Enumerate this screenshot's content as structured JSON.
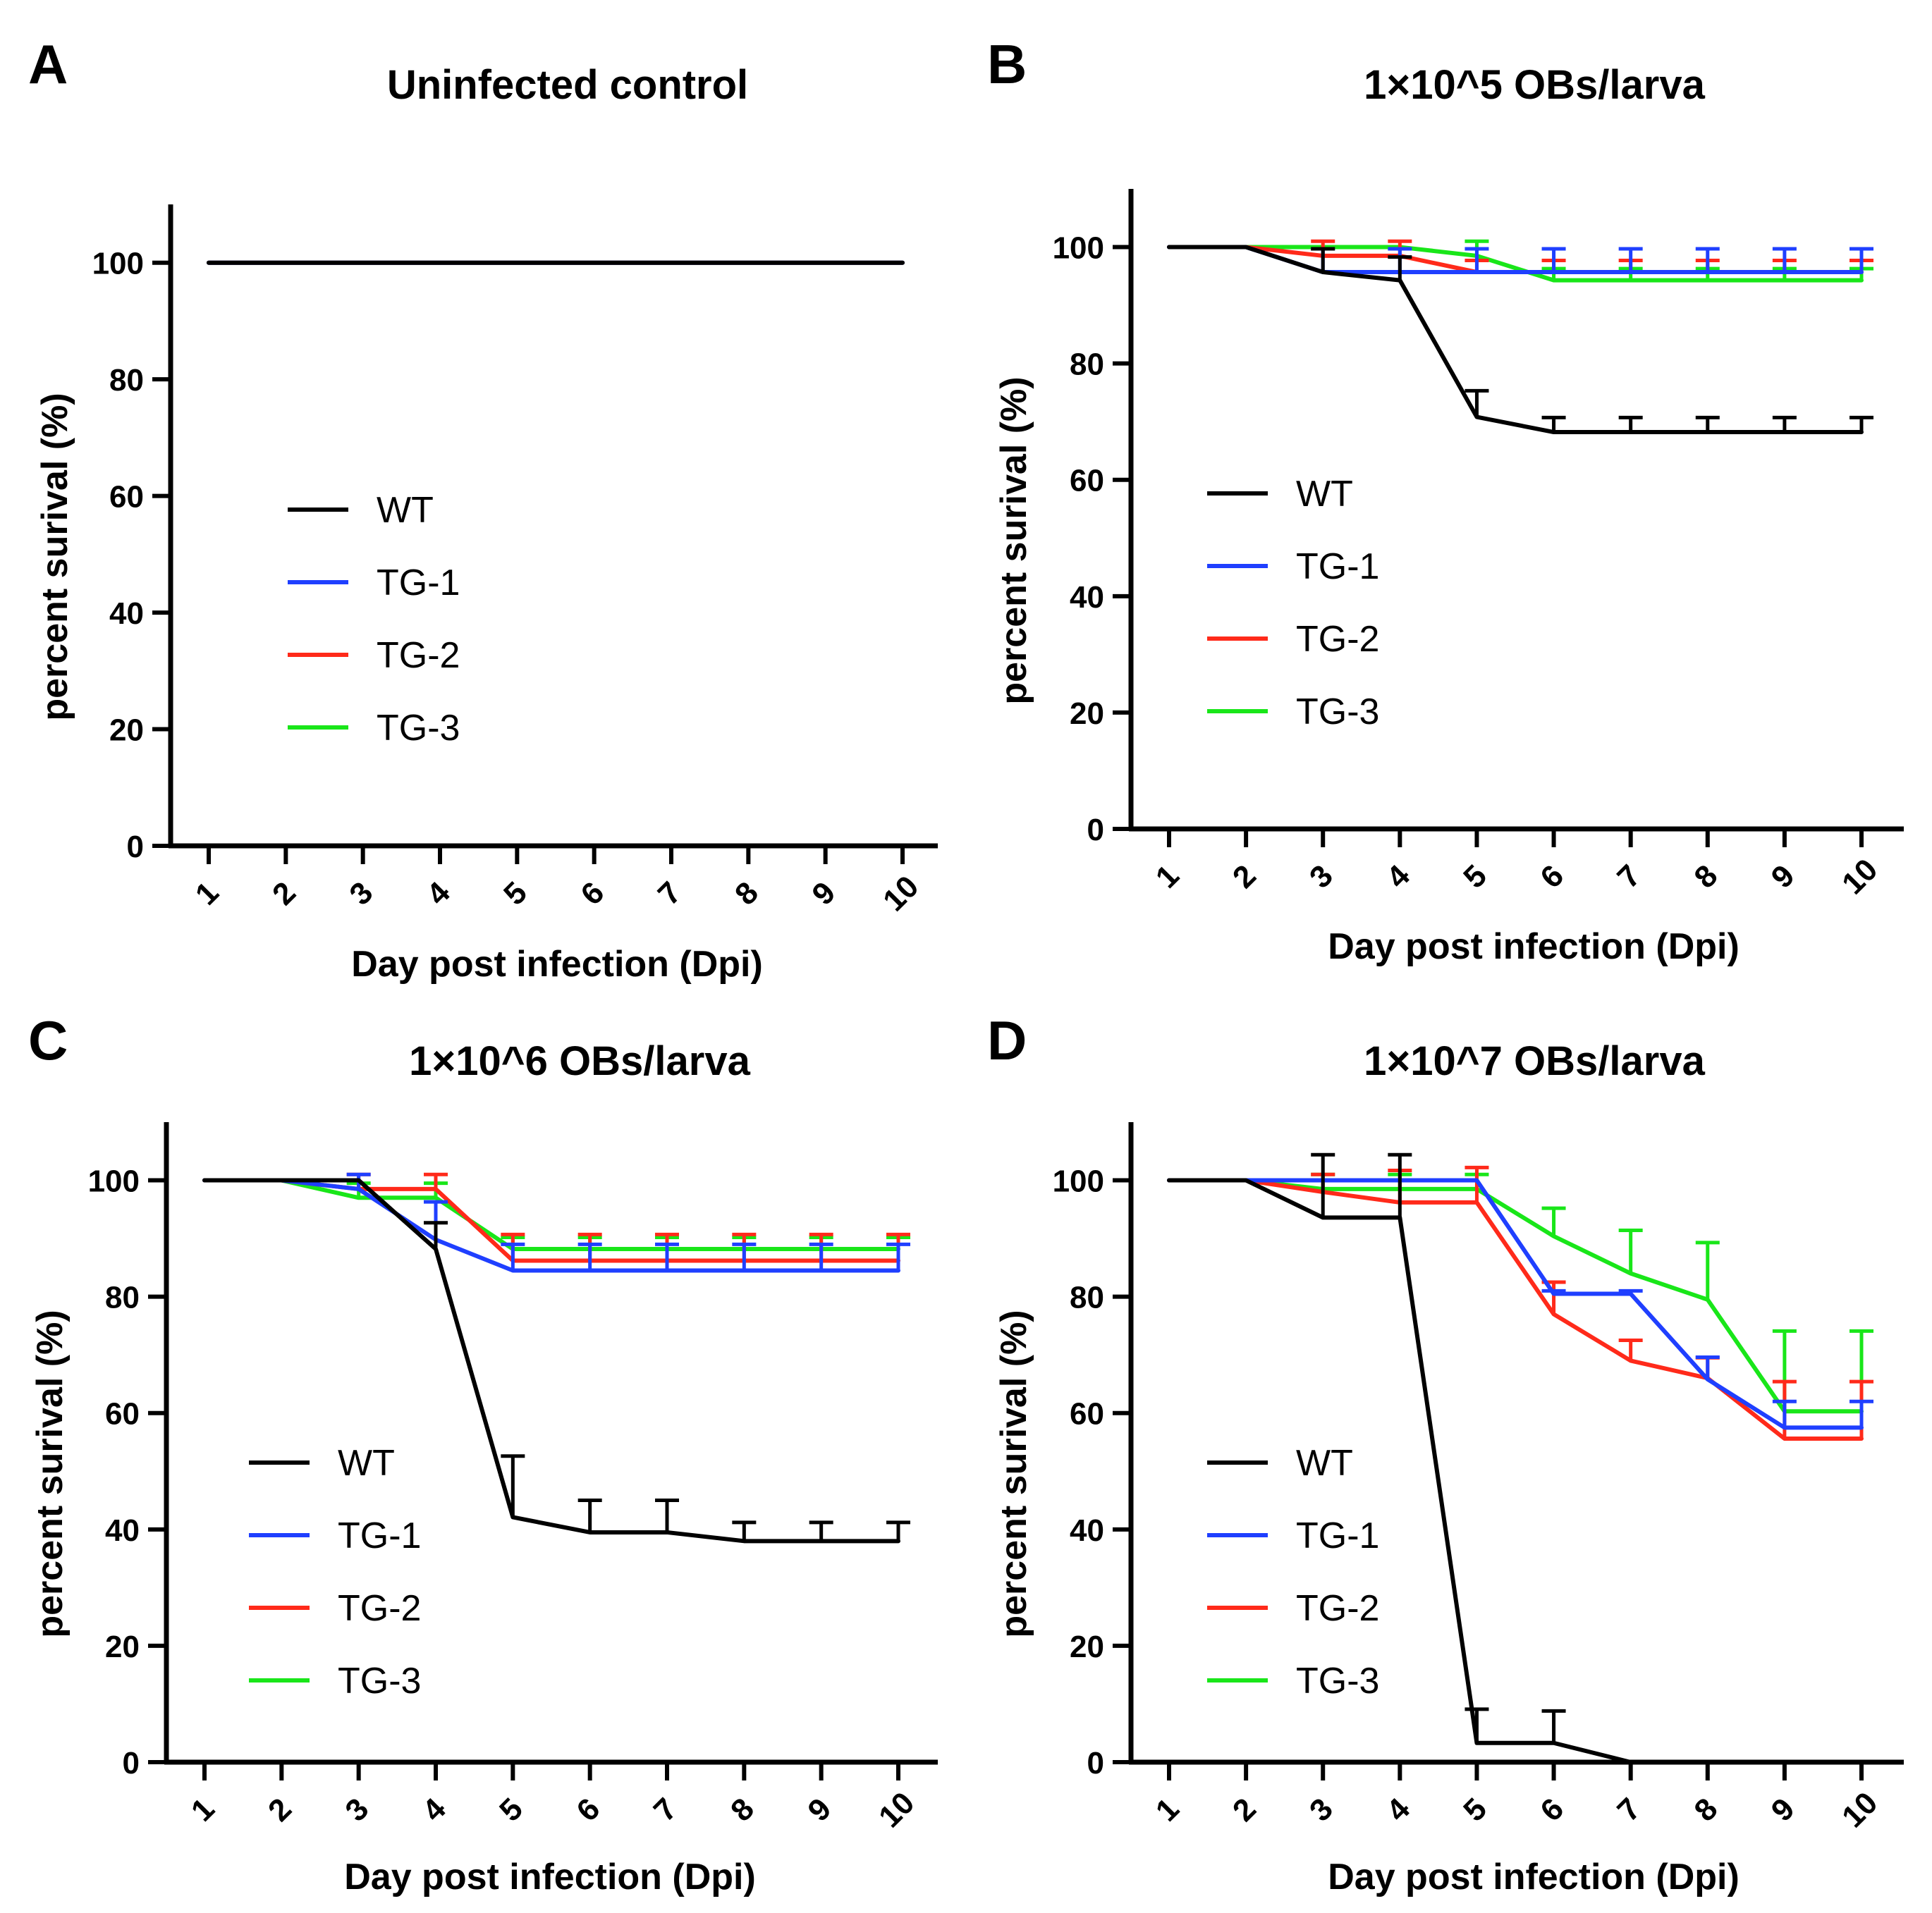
{
  "figure": {
    "colors": {
      "WT": "#000000",
      "TG-1": "#1f3fff",
      "TG-2": "#ff2a1a",
      "TG-3": "#19e619"
    }
  },
  "chart_data": [
    {
      "letter": "A",
      "type": "line",
      "title": "Uninfected control",
      "xlabel": "Day post  infection (Dpi)",
      "ylabel": "percent surival (%)",
      "categories": [
        "1",
        "2",
        "3",
        "4",
        "5",
        "6",
        "7",
        "8",
        "9",
        "10"
      ],
      "yticks": [
        "0",
        "20",
        "40",
        "60",
        "80",
        "100"
      ],
      "ylim": [
        0,
        110
      ],
      "legend": [
        "WT",
        "TG-1",
        "TG-2",
        "TG-3"
      ],
      "series": [
        {
          "name": "TG-3",
          "values": [
            100,
            100,
            100,
            100,
            100,
            100,
            100,
            100,
            100,
            100
          ],
          "errors": [
            0,
            0,
            0,
            0,
            0,
            0,
            0,
            0,
            0,
            0
          ]
        },
        {
          "name": "TG-2",
          "values": [
            100,
            100,
            100,
            100,
            100,
            100,
            100,
            100,
            100,
            100
          ],
          "errors": [
            0,
            0,
            0,
            0,
            0,
            0,
            0,
            0,
            0,
            0
          ]
        },
        {
          "name": "TG-1",
          "values": [
            100,
            100,
            100,
            100,
            100,
            100,
            100,
            100,
            100,
            100
          ],
          "errors": [
            0,
            0,
            0,
            0,
            0,
            0,
            0,
            0,
            0,
            0
          ]
        },
        {
          "name": "WT",
          "values": [
            100,
            100,
            100,
            100,
            100,
            100,
            100,
            100,
            100,
            100
          ],
          "errors": [
            0,
            0,
            0,
            0,
            0,
            0,
            0,
            0,
            0,
            0
          ]
        }
      ]
    },
    {
      "letter": "B",
      "type": "line",
      "title": "1×10^5 OBs/larva",
      "xlabel": "Day post  infection (Dpi)",
      "ylabel": "percent surival (%)",
      "categories": [
        "1",
        "2",
        "3",
        "4",
        "5",
        "6",
        "7",
        "8",
        "9",
        "10"
      ],
      "yticks": [
        "0",
        "20",
        "40",
        "60",
        "80",
        "100"
      ],
      "ylim": [
        0,
        110
      ],
      "legend": [
        "WT",
        "TG-1",
        "TG-2",
        "TG-3"
      ],
      "series": [
        {
          "name": "TG-3",
          "values": [
            100,
            100,
            100,
            100,
            98.5,
            94.3,
            94.3,
            94.3,
            94.3,
            94.3
          ],
          "errors": [
            0,
            0,
            0,
            0,
            2.5,
            2,
            2,
            2,
            2,
            2
          ]
        },
        {
          "name": "TG-2",
          "values": [
            100,
            100,
            98.5,
            98.5,
            95.7,
            95.7,
            95.7,
            95.7,
            95.7,
            95.7
          ],
          "errors": [
            0,
            0,
            2.5,
            2.5,
            2,
            2,
            2,
            2,
            2,
            2
          ]
        },
        {
          "name": "TG-1",
          "values": [
            100,
            100,
            95.7,
            95.7,
            95.7,
            95.7,
            95.7,
            95.7,
            95.7,
            95.7
          ],
          "errors": [
            0,
            0,
            4,
            4,
            4,
            4,
            4,
            4,
            4,
            4
          ]
        },
        {
          "name": "WT",
          "values": [
            100,
            100,
            95.7,
            94.3,
            70.8,
            68.2,
            68.2,
            68.2,
            68.2,
            68.2
          ],
          "errors": [
            0,
            0,
            4,
            4,
            4.5,
            2.5,
            2.5,
            2.5,
            2.5,
            2.5
          ]
        }
      ]
    },
    {
      "letter": "C",
      "type": "line",
      "title": "1×10^6 OBs/larva",
      "xlabel": "Day post  infection (Dpi)",
      "ylabel": "percent surival (%)",
      "categories": [
        "1",
        "2",
        "3",
        "4",
        "5",
        "6",
        "7",
        "8",
        "9",
        "10"
      ],
      "yticks": [
        "0",
        "20",
        "40",
        "60",
        "80",
        "100"
      ],
      "ylim": [
        0,
        110
      ],
      "legend": [
        "WT",
        "TG-1",
        "TG-2",
        "TG-3"
      ],
      "series": [
        {
          "name": "TG-3",
          "values": [
            100,
            100,
            97,
            97,
            88.2,
            88.2,
            88.2,
            88.2,
            88.2,
            88.2
          ],
          "errors": [
            0,
            0,
            2.5,
            2.5,
            2,
            2,
            2,
            2,
            2,
            2
          ]
        },
        {
          "name": "TG-2",
          "values": [
            100,
            100,
            98.5,
            98.5,
            86.2,
            86.2,
            86.2,
            86.2,
            86.2,
            86.2
          ],
          "errors": [
            0,
            0,
            2.5,
            2.5,
            4.5,
            4.5,
            4.5,
            4.5,
            4.5,
            4.5
          ]
        },
        {
          "name": "TG-1",
          "values": [
            100,
            100,
            98.5,
            89.8,
            84.5,
            84.5,
            84.5,
            84.5,
            84.5,
            84.5
          ],
          "errors": [
            0,
            0,
            2.5,
            6.5,
            4.5,
            4.5,
            4.5,
            4.5,
            4.5,
            4.5
          ]
        },
        {
          "name": "WT",
          "values": [
            100,
            100,
            100,
            88.2,
            42.1,
            39.5,
            39.5,
            38,
            38,
            38
          ],
          "errors": [
            0,
            0,
            0,
            4.5,
            10.5,
            5.5,
            5.5,
            3.2,
            3.2,
            3.2
          ]
        }
      ]
    },
    {
      "letter": "D",
      "type": "line",
      "title": "1×10^7 OBs/larva",
      "xlabel": "Day post  infection (Dpi)",
      "ylabel": "percent surival (%)",
      "categories": [
        "1",
        "2",
        "3",
        "4",
        "5",
        "6",
        "7",
        "8",
        "9",
        "10"
      ],
      "yticks": [
        "0",
        "20",
        "40",
        "60",
        "80",
        "100"
      ],
      "ylim": [
        0,
        110
      ],
      "legend": [
        "WT",
        "TG-1",
        "TG-2",
        "TG-3"
      ],
      "series": [
        {
          "name": "TG-3",
          "values": [
            100,
            100,
            98.5,
            98.5,
            98.5,
            90.4,
            84,
            79.5,
            60.3,
            60.3
          ],
          "errors": [
            0,
            0,
            2.5,
            2.5,
            2.5,
            4.8,
            7.4,
            9.8,
            13.8,
            13.8
          ]
        },
        {
          "name": "TG-2",
          "values": [
            100,
            100,
            98,
            96.2,
            96.2,
            77,
            69,
            66,
            55.6,
            55.6
          ],
          "errors": [
            0,
            0,
            3,
            5.5,
            6,
            5.5,
            3.5,
            3.5,
            9.8,
            9.8
          ]
        },
        {
          "name": "TG-1",
          "values": [
            100,
            100,
            100,
            100,
            100,
            80.5,
            80.5,
            65.8,
            57.5,
            57.5
          ],
          "errors": [
            0,
            0,
            0,
            0,
            0,
            0.5,
            0.5,
            3.8,
            4.5,
            4.5
          ]
        },
        {
          "name": "WT",
          "values": [
            100,
            100,
            93.6,
            93.6,
            3.3,
            3.3,
            0,
            0,
            0,
            0
          ],
          "errors": [
            0,
            0,
            10.8,
            10.8,
            5.8,
            5.5,
            0,
            0,
            0,
            0
          ]
        }
      ]
    }
  ]
}
